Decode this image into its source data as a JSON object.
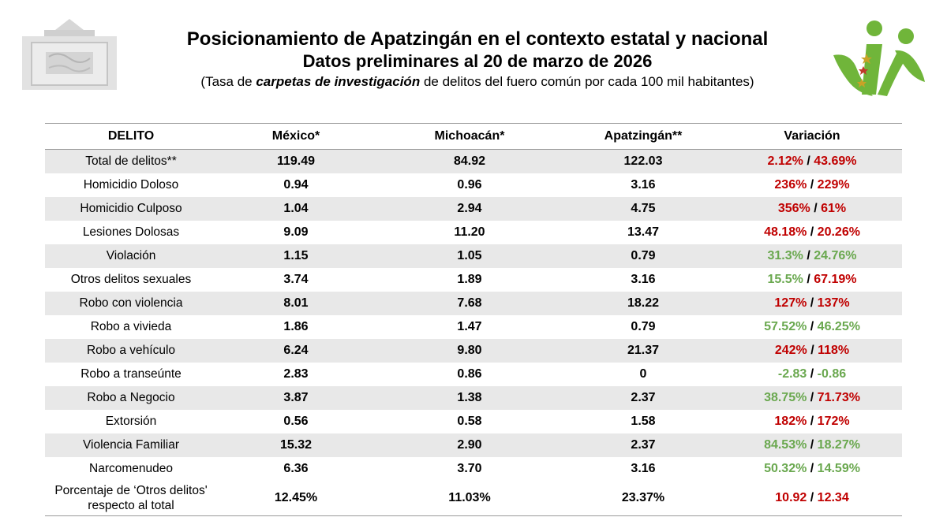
{
  "header": {
    "title": "Posicionamiento de Apatzingán en el contexto estatal y nacional",
    "date_line": "Datos preliminares al 20 de marzo de 2026",
    "subtitle_pre": "(Tasa de ",
    "subtitle_em": "carpetas de investigación",
    "subtitle_post": " de delitos del fuero común por cada 100 mil habitantes)"
  },
  "logos": {
    "left": "seal-watermark",
    "right": "municipal-logo-icon"
  },
  "colors": {
    "increase": "#c00000",
    "decrease": "#6aa84f",
    "row_shade": "#e8e8e8"
  },
  "table": {
    "headers": [
      "DELITO",
      "México*",
      "Michoacán*",
      "Apatzingán**",
      "Variación"
    ],
    "rows": [
      {
        "crime": "Total de delitos**",
        "mexico": "119.49",
        "michoacan": "84.92",
        "apatzingan": "122.03",
        "var_a": "2.12%",
        "var_a_color": "red",
        "var_b": "43.69%",
        "var_b_color": "red"
      },
      {
        "crime": "Homicidio Doloso",
        "mexico": "0.94",
        "michoacan": "0.96",
        "apatzingan": "3.16",
        "var_a": "236%",
        "var_a_color": "red",
        "var_b": "229%",
        "var_b_color": "red"
      },
      {
        "crime": "Homicidio Culposo",
        "mexico": "1.04",
        "michoacan": "2.94",
        "apatzingan": "4.75",
        "var_a": "356%",
        "var_a_color": "red",
        "var_b": "61%",
        "var_b_color": "red"
      },
      {
        "crime": "Lesiones Dolosas",
        "mexico": "9.09",
        "michoacan": "11.20",
        "apatzingan": "13.47",
        "var_a": "48.18%",
        "var_a_color": "red",
        "var_b": "20.26%",
        "var_b_color": "red"
      },
      {
        "crime": "Violación",
        "mexico": "1.15",
        "michoacan": "1.05",
        "apatzingan": "0.79",
        "var_a": "31.3%",
        "var_a_color": "green",
        "var_b": "24.76%",
        "var_b_color": "green"
      },
      {
        "crime": "Otros delitos sexuales",
        "mexico": "3.74",
        "michoacan": "1.89",
        "apatzingan": "3.16",
        "var_a": "15.5%",
        "var_a_color": "green",
        "var_b": "67.19%",
        "var_b_color": "red"
      },
      {
        "crime": "Robo con violencia",
        "mexico": "8.01",
        "michoacan": "7.68",
        "apatzingan": "18.22",
        "var_a": "127%",
        "var_a_color": "red",
        "var_b": "137%",
        "var_b_color": "red"
      },
      {
        "crime": "Robo a vivieda",
        "mexico": "1.86",
        "michoacan": "1.47",
        "apatzingan": "0.79",
        "var_a": "57.52%",
        "var_a_color": "green",
        "var_b": "46.25%",
        "var_b_color": "green"
      },
      {
        "crime": "Robo a vehículo",
        "mexico": "6.24",
        "michoacan": "9.80",
        "apatzingan": "21.37",
        "var_a": "242%",
        "var_a_color": "red",
        "var_b": "118%",
        "var_b_color": "red"
      },
      {
        "crime": "Robo a transeúnte",
        "mexico": "2.83",
        "michoacan": "0.86",
        "apatzingan": "0",
        "var_a": "-2.83",
        "var_a_color": "green",
        "var_b": "-0.86",
        "var_b_color": "green"
      },
      {
        "crime": "Robo a Negocio",
        "mexico": "3.87",
        "michoacan": "1.38",
        "apatzingan": "2.37",
        "var_a": "38.75%",
        "var_a_color": "green",
        "var_b": "71.73%",
        "var_b_color": "red"
      },
      {
        "crime": "Extorsión",
        "mexico": "0.56",
        "michoacan": "0.58",
        "apatzingan": "1.58",
        "var_a": "182%",
        "var_a_color": "red",
        "var_b": "172%",
        "var_b_color": "red"
      },
      {
        "crime": "Violencia Familiar",
        "mexico": "15.32",
        "michoacan": "2.90",
        "apatzingan": "2.37",
        "var_a": "84.53%",
        "var_a_color": "green",
        "var_b": "18.27%",
        "var_b_color": "green"
      },
      {
        "crime": "Narcomenudeo",
        "mexico": "6.36",
        "michoacan": "3.70",
        "apatzingan": "3.16",
        "var_a": "50.32%",
        "var_a_color": "green",
        "var_b": "14.59%",
        "var_b_color": "green"
      }
    ],
    "last_row": {
      "crime_line1": "Porcentaje de ‘Otros delitos'",
      "crime_line2": "respecto al total",
      "mexico": "12.45%",
      "michoacan": "11.03%",
      "apatzingan": "23.37%",
      "var_a": "10.92",
      "var_a_color": "red",
      "var_b": "12.34",
      "var_b_color": "red"
    },
    "separator": " / "
  }
}
